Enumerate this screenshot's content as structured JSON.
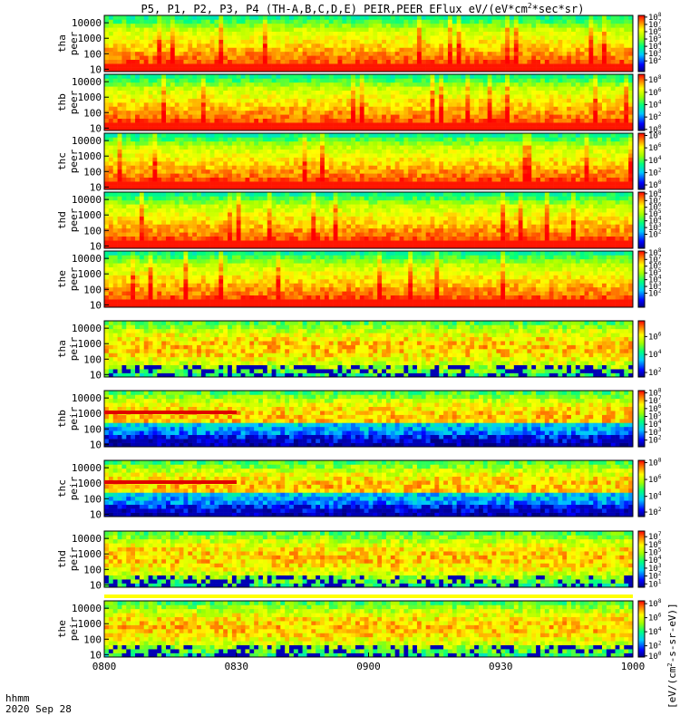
{
  "chart_data": {
    "type": "heatmap",
    "title": "P5, P1, P2, P3, P4 (TH-A,B,C,D,E) PEIR,PEER EFlux eV/(eV*cm^2*sec*sr)",
    "title_parts": {
      "main": "P5, P1, P2, P3, P4 (TH-A,B,C,D,E) PEIR,PEER EFlux eV/(eV*cm",
      "sup": "2",
      "tail": "*sec*sr)"
    },
    "x_axis": {
      "label": "hhmm",
      "date_label": "2020 Sep 28",
      "ticks": [
        "0800",
        "0830",
        "0900",
        "0930",
        "1000"
      ],
      "range": [
        "08:00",
        "10:00"
      ]
    },
    "y_axis": {
      "scale": "log",
      "range": [
        7,
        30000
      ],
      "tick_labels": [
        "10",
        "100",
        "1000",
        "10000"
      ]
    },
    "colorbar_label": "[eV/(cm^2-s-sr-eV)]",
    "colorbar_label_parts": {
      "pre": "[eV/(cm",
      "sup": "2",
      "post": "-s-sr-eV)]"
    },
    "colorscale": "rainbow",
    "panels": [
      {
        "id": "tha-peer",
        "label_1": "tha",
        "label_2": "peer",
        "species": "electron",
        "colorbar_ticks": [
          {
            "exp": 8,
            "frac": 0.97
          },
          {
            "exp": 7,
            "frac": 0.84
          },
          {
            "exp": 6,
            "frac": 0.71
          },
          {
            "exp": 5,
            "frac": 0.58
          },
          {
            "exp": 4,
            "frac": 0.45
          },
          {
            "exp": 3,
            "frac": 0.32
          },
          {
            "exp": 2,
            "frac": 0.19
          }
        ]
      },
      {
        "id": "thb-peer",
        "label_1": "thb",
        "label_2": "peer",
        "species": "electron",
        "colorbar_ticks": [
          {
            "exp": 8,
            "frac": 0.9
          },
          {
            "exp": 6,
            "frac": 0.68
          },
          {
            "exp": 4,
            "frac": 0.46
          },
          {
            "exp": 2,
            "frac": 0.24
          },
          {
            "exp": 0,
            "frac": 0.02
          }
        ]
      },
      {
        "id": "thc-peer",
        "label_1": "thc",
        "label_2": "peer",
        "species": "electron",
        "colorbar_ticks": [
          {
            "exp": 8,
            "frac": 0.96
          },
          {
            "exp": 6,
            "frac": 0.74
          },
          {
            "exp": 4,
            "frac": 0.52
          },
          {
            "exp": 2,
            "frac": 0.3
          },
          {
            "exp": 0,
            "frac": 0.08
          }
        ]
      },
      {
        "id": "thd-peer",
        "label_1": "thd",
        "label_2": "peer",
        "species": "electron",
        "colorbar_ticks": [
          {
            "exp": 8,
            "frac": 0.97
          },
          {
            "exp": 7,
            "frac": 0.85
          },
          {
            "exp": 6,
            "frac": 0.73
          },
          {
            "exp": 5,
            "frac": 0.61
          },
          {
            "exp": 4,
            "frac": 0.49
          },
          {
            "exp": 3,
            "frac": 0.37
          },
          {
            "exp": 2,
            "frac": 0.25
          }
        ]
      },
      {
        "id": "the-peer",
        "label_1": "the",
        "label_2": "peer",
        "species": "electron",
        "colorbar_ticks": [
          {
            "exp": 8,
            "frac": 0.97
          },
          {
            "exp": 7,
            "frac": 0.85
          },
          {
            "exp": 6,
            "frac": 0.73
          },
          {
            "exp": 5,
            "frac": 0.61
          },
          {
            "exp": 4,
            "frac": 0.49
          },
          {
            "exp": 3,
            "frac": 0.37
          },
          {
            "exp": 2,
            "frac": 0.25
          }
        ]
      },
      {
        "id": "tha-peir",
        "label_1": "tha",
        "label_2": "peir",
        "species": "ion",
        "colorbar_ticks": [
          {
            "exp": 6,
            "frac": 0.72
          },
          {
            "exp": 4,
            "frac": 0.4
          },
          {
            "exp": 2,
            "frac": 0.08
          }
        ]
      },
      {
        "id": "thb-peir",
        "label_1": "thb",
        "label_2": "peir",
        "species": "ion",
        "colorbar_ticks": [
          {
            "exp": 8,
            "frac": 0.96
          },
          {
            "exp": 7,
            "frac": 0.82
          },
          {
            "exp": 6,
            "frac": 0.68
          },
          {
            "exp": 5,
            "frac": 0.54
          },
          {
            "exp": 4,
            "frac": 0.4
          },
          {
            "exp": 3,
            "frac": 0.26
          },
          {
            "exp": 2,
            "frac": 0.12
          }
        ]
      },
      {
        "id": "thc-peir",
        "label_1": "thc",
        "label_2": "peir",
        "species": "ion",
        "colorbar_ticks": [
          {
            "exp": 8,
            "frac": 0.96
          },
          {
            "exp": 6,
            "frac": 0.66
          },
          {
            "exp": 4,
            "frac": 0.36
          },
          {
            "exp": 2,
            "frac": 0.08
          }
        ]
      },
      {
        "id": "thd-peir",
        "label_1": "thd",
        "label_2": "peir",
        "species": "ion",
        "colorbar_ticks": [
          {
            "exp": 7,
            "frac": 0.9
          },
          {
            "exp": 6,
            "frac": 0.76
          },
          {
            "exp": 5,
            "frac": 0.62
          },
          {
            "exp": 4,
            "frac": 0.48
          },
          {
            "exp": 3,
            "frac": 0.34
          },
          {
            "exp": 2,
            "frac": 0.2
          },
          {
            "exp": 1,
            "frac": 0.06
          }
        ]
      },
      {
        "id": "the-peir",
        "label_1": "the",
        "label_2": "peir",
        "species": "ion",
        "colorbar_ticks": [
          {
            "exp": 8,
            "frac": 0.95
          },
          {
            "exp": 6,
            "frac": 0.7
          },
          {
            "exp": 4,
            "frac": 0.45
          },
          {
            "exp": 2,
            "frac": 0.2
          },
          {
            "exp": 0,
            "frac": 0.02
          }
        ]
      }
    ],
    "grid": false,
    "legend": "colorbars-right"
  }
}
